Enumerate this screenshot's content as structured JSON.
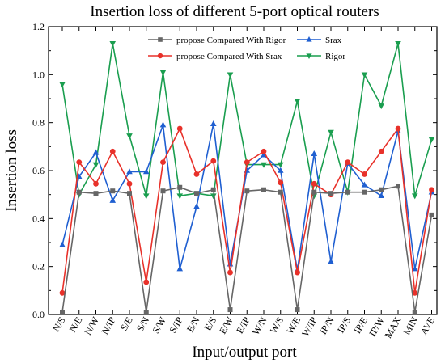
{
  "chart_data": {
    "type": "line",
    "title": "Insertion loss of different 5-port optical routers",
    "xlabel": "Input/output port",
    "ylabel": "Insertion loss",
    "ylim": [
      0,
      1.2
    ],
    "yticks": [
      "0.0",
      "0.2",
      "0.4",
      "0.6",
      "0.8",
      "1.0",
      "1.2"
    ],
    "grid": false,
    "legend_position": "top",
    "categories": [
      "N/S",
      "N/E",
      "N/W",
      "N/IP",
      "S/E",
      "S/N",
      "S/W",
      "S/IP",
      "E/N",
      "E/S",
      "E/W",
      "E/IP",
      "W/N",
      "W/S",
      "W/E",
      "W/IP",
      "IP/N",
      "IP/S",
      "IP/E",
      "IP/W",
      "MAX",
      "MIN",
      "AVE"
    ],
    "series": [
      {
        "name": "propose Compared With Rigor",
        "color": "#666666",
        "marker": "square",
        "values": [
          0.01,
          0.51,
          0.505,
          0.515,
          0.505,
          0.01,
          0.515,
          0.53,
          0.505,
          0.52,
          0.02,
          0.515,
          0.52,
          0.51,
          0.02,
          0.51,
          0.505,
          0.51,
          0.51,
          0.52,
          0.535,
          0.01,
          0.415
        ]
      },
      {
        "name": "propose Compared With Srax",
        "color": "#e8312a",
        "marker": "circle",
        "values": [
          0.09,
          0.635,
          0.545,
          0.68,
          0.545,
          0.135,
          0.635,
          0.775,
          0.585,
          0.64,
          0.175,
          0.635,
          0.68,
          0.55,
          0.175,
          0.545,
          0.5,
          0.635,
          0.585,
          0.68,
          0.775,
          0.09,
          0.52
        ]
      },
      {
        "name": "Srax",
        "color": "#1f5fd1",
        "marker": "triangle-up",
        "values": [
          0.29,
          0.575,
          0.675,
          0.475,
          0.595,
          0.595,
          0.79,
          0.19,
          0.45,
          0.795,
          0.21,
          0.6,
          0.665,
          0.6,
          0.185,
          0.67,
          0.22,
          0.63,
          0.54,
          0.495,
          0.765,
          0.19,
          0.51
        ]
      },
      {
        "name": "Rigor",
        "color": "#1a9e4f",
        "marker": "triangle-down",
        "values": [
          0.96,
          0.5,
          0.625,
          1.13,
          0.745,
          0.495,
          1.01,
          0.495,
          0.505,
          0.495,
          1.0,
          0.625,
          0.625,
          0.625,
          0.89,
          0.495,
          0.76,
          0.51,
          1.0,
          0.87,
          1.13,
          0.495,
          0.73
        ]
      }
    ]
  }
}
